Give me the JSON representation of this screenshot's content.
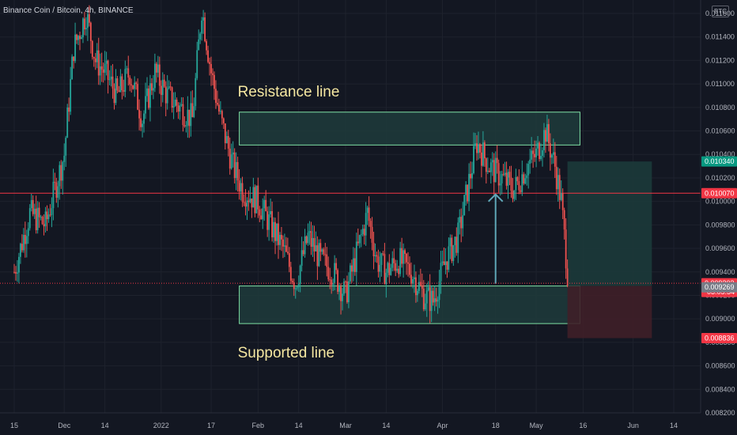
{
  "header": {
    "title": "Binance Coin / Bitcoin, 4h, BINANCE",
    "currency": "BTC"
  },
  "colors": {
    "background": "#131722",
    "grid": "#1e222d",
    "axis_text": "#b2b5be",
    "up": "#26a69a",
    "down": "#ef5350",
    "zone_fill": "#1f3b3b",
    "zone_border": "#7ee0a4",
    "target_fill": "#1c3a3a",
    "stop_fill": "#3f1f28",
    "hline": "#f23645",
    "annotation": "#f5e7a1",
    "arrow": "#5fa7b8"
  },
  "chart_data": {
    "type": "candlestick",
    "symbol": "Binance Coin / Bitcoin",
    "timeframe": "4h",
    "exchange": "BINANCE",
    "ylim": [
      0.0082,
      0.01176
    ],
    "y_ticks": [
      "0.011600",
      "0.011400",
      "0.011200",
      "0.011000",
      "0.010800",
      "0.010600",
      "0.010400",
      "0.010200",
      "0.010000",
      "0.009800",
      "0.009600",
      "0.009400",
      "0.009200",
      "0.009000",
      "0.008800",
      "0.008600",
      "0.008400",
      "0.008200"
    ],
    "x_tick_labels": [
      "15",
      "Dec",
      "14",
      "2022",
      "17",
      "Feb",
      "14",
      "Mar",
      "14",
      "Apr",
      "18",
      "May",
      "16",
      "Jun",
      "14"
    ],
    "x_tick_dates": [
      "2021-11-15",
      "2021-12-01",
      "2021-12-14",
      "2022-01-01",
      "2022-01-17",
      "2022-02-01",
      "2022-02-14",
      "2022-03-01",
      "2022-03-14",
      "2022-04-01",
      "2022-04-18",
      "2022-05-01",
      "2022-05-16",
      "2022-06-01",
      "2022-06-14"
    ],
    "series": [
      {
        "values": [
          [
            "2021-11-15",
            0.0094
          ],
          [
            "2021-11-20",
            0.0099
          ],
          [
            "2021-11-25",
            0.0098
          ],
          [
            "2021-12-01",
            0.0104
          ],
          [
            "2021-12-04",
            0.0113
          ],
          [
            "2021-12-08",
            0.0116
          ],
          [
            "2021-12-11",
            0.0112
          ],
          [
            "2021-12-14",
            0.0111
          ],
          [
            "2021-12-18",
            0.0109
          ],
          [
            "2021-12-22",
            0.0111
          ],
          [
            "2021-12-26",
            0.0107
          ],
          [
            "2021-12-30",
            0.0111
          ],
          [
            "2022-01-03",
            0.0109
          ],
          [
            "2022-01-07",
            0.0108
          ],
          [
            "2022-01-11",
            0.0107
          ],
          [
            "2022-01-14",
            0.01165
          ],
          [
            "2022-01-17",
            0.0111
          ],
          [
            "2022-01-20",
            0.0107
          ],
          [
            "2022-01-24",
            0.0103
          ],
          [
            "2022-01-27",
            0.0101
          ],
          [
            "2022-02-01",
            0.01
          ],
          [
            "2022-02-05",
            0.0098
          ],
          [
            "2022-02-09",
            0.0096
          ],
          [
            "2022-02-13",
            0.0093
          ],
          [
            "2022-02-17",
            0.0097
          ],
          [
            "2022-02-21",
            0.0095
          ],
          [
            "2022-02-25",
            0.0094
          ],
          [
            "2022-03-01",
            0.0092
          ],
          [
            "2022-03-04",
            0.0095
          ],
          [
            "2022-03-08",
            0.0099
          ],
          [
            "2022-03-11",
            0.0095
          ],
          [
            "2022-03-14",
            0.0094
          ],
          [
            "2022-03-18",
            0.0095
          ],
          [
            "2022-03-22",
            0.0094
          ],
          [
            "2022-03-26",
            0.0092
          ],
          [
            "2022-03-29",
            0.00915
          ],
          [
            "2022-04-02",
            0.0095
          ],
          [
            "2022-04-06",
            0.0097
          ],
          [
            "2022-04-09",
            0.0101
          ],
          [
            "2022-04-12",
            0.0105
          ],
          [
            "2022-04-16",
            0.0103
          ],
          [
            "2022-04-20",
            0.0102
          ],
          [
            "2022-04-24",
            0.0101
          ],
          [
            "2022-04-28",
            0.0103
          ],
          [
            "2022-05-01",
            0.0104
          ],
          [
            "2022-05-04",
            0.0106
          ],
          [
            "2022-05-07",
            0.0103
          ],
          [
            "2022-05-09",
            0.01
          ],
          [
            "2022-05-11",
            0.0094
          ]
        ]
      }
    ],
    "price_labels": [
      {
        "value": 0.01034,
        "label": "0.010340",
        "color": "#089981"
      },
      {
        "value": 0.01007,
        "label": "0.010070",
        "color": "#f23645"
      },
      {
        "value": 0.009303,
        "label": "0.009303",
        "sub": "03:05:54",
        "color": "#f23645"
      },
      {
        "value": 0.009269,
        "label": "0.009269",
        "color": "#787b86"
      },
      {
        "value": 0.008836,
        "label": "0.008836",
        "color": "#f23645"
      }
    ],
    "hline": {
      "value": 0.01007
    },
    "zones": [
      {
        "name": "Resistance line",
        "start": "2022-01-26",
        "end": "2022-05-15",
        "low": 0.01048,
        "high": 0.01076
      },
      {
        "name": "Supported line",
        "start": "2022-01-26",
        "end": "2022-05-15",
        "low": 0.00896,
        "high": 0.00928
      }
    ],
    "position": {
      "start": "2022-05-11",
      "end": "2022-06-07",
      "entry": 0.00928,
      "target": 0.01034,
      "stop": 0.008836
    },
    "arrow": {
      "date": "2022-04-18",
      "from": 0.0093,
      "to": 0.01006
    },
    "annotations": [
      {
        "text": "Resistance line",
        "date": "2022-01-26",
        "value": 0.01094
      },
      {
        "text": "Supported line",
        "date": "2022-01-26",
        "value": 0.00872
      }
    ]
  }
}
